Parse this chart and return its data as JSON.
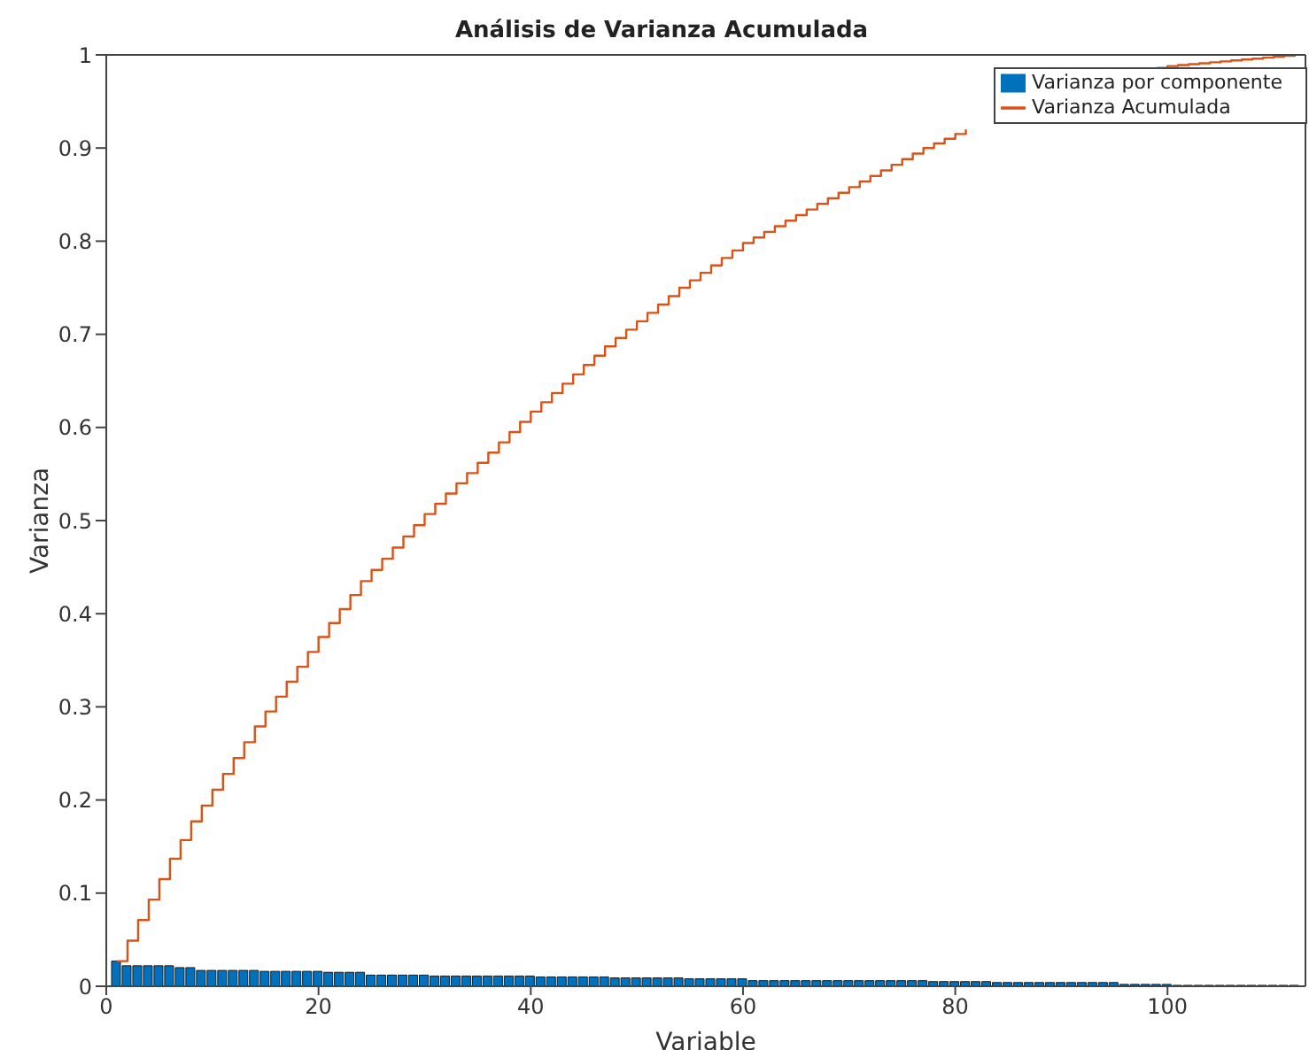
{
  "chart_data": {
    "type": "bar",
    "title": "Análisis de Varianza Acumulada",
    "xlabel": "Variable",
    "ylabel": "Varianza",
    "x": [
      1,
      2,
      3,
      4,
      5,
      6,
      7,
      8,
      9,
      10,
      11,
      12,
      13,
      14,
      15,
      16,
      17,
      18,
      19,
      20,
      21,
      22,
      23,
      24,
      25,
      26,
      27,
      28,
      29,
      30,
      31,
      32,
      33,
      34,
      35,
      36,
      37,
      38,
      39,
      40,
      41,
      42,
      43,
      44,
      45,
      46,
      47,
      48,
      49,
      50,
      51,
      52,
      53,
      54,
      55,
      56,
      57,
      58,
      59,
      60,
      61,
      62,
      63,
      64,
      65,
      66,
      67,
      68,
      69,
      70,
      71,
      72,
      73,
      74,
      75,
      76,
      77,
      78,
      79,
      80,
      81,
      82,
      83,
      84,
      85,
      86,
      87,
      88,
      89,
      90,
      91,
      92,
      93,
      94,
      95,
      96,
      97,
      98,
      99,
      100,
      101,
      102,
      103,
      104,
      105,
      106,
      107,
      108,
      109,
      110,
      111,
      112
    ],
    "series": [
      {
        "name": "Varianza por componente",
        "color": "#0072bd",
        "values": [
          0.027,
          0.022,
          0.022,
          0.022,
          0.022,
          0.022,
          0.02,
          0.02,
          0.017,
          0.017,
          0.017,
          0.017,
          0.017,
          0.017,
          0.016,
          0.016,
          0.016,
          0.016,
          0.016,
          0.016,
          0.015,
          0.015,
          0.015,
          0.015,
          0.012,
          0.012,
          0.012,
          0.012,
          0.012,
          0.012,
          0.011,
          0.011,
          0.011,
          0.011,
          0.011,
          0.011,
          0.011,
          0.011,
          0.011,
          0.011,
          0.01,
          0.01,
          0.01,
          0.01,
          0.01,
          0.01,
          0.01,
          0.009,
          0.009,
          0.009,
          0.009,
          0.009,
          0.009,
          0.009,
          0.008,
          0.008,
          0.008,
          0.008,
          0.008,
          0.008,
          0.006,
          0.006,
          0.006,
          0.006,
          0.006,
          0.006,
          0.006,
          0.006,
          0.006,
          0.006,
          0.006,
          0.006,
          0.006,
          0.006,
          0.006,
          0.006,
          0.006,
          0.005,
          0.005,
          0.005,
          0.005,
          0.005,
          0.005,
          0.004,
          0.004,
          0.004,
          0.004,
          0.004,
          0.004,
          0.004,
          0.004,
          0.004,
          0.004,
          0.004,
          0.004,
          0.002,
          0.002,
          0.002,
          0.002,
          0.002,
          0.001,
          0.001,
          0.001,
          0.001,
          0.001,
          0.001,
          0.001,
          0.001,
          0.001,
          0.001,
          0.001,
          0.001
        ]
      },
      {
        "name": "Varianza Acumulada",
        "type": "step",
        "color": "#d95319",
        "values": [
          0.027,
          0.049,
          0.071,
          0.093,
          0.115,
          0.137,
          0.157,
          0.177,
          0.194,
          0.211,
          0.228,
          0.245,
          0.262,
          0.279,
          0.295,
          0.311,
          0.327,
          0.343,
          0.359,
          0.375,
          0.39,
          0.405,
          0.42,
          0.435,
          0.447,
          0.459,
          0.471,
          0.483,
          0.495,
          0.507,
          0.518,
          0.529,
          0.54,
          0.551,
          0.562,
          0.573,
          0.584,
          0.595,
          0.606,
          0.617,
          0.627,
          0.637,
          0.647,
          0.657,
          0.667,
          0.677,
          0.687,
          0.696,
          0.705,
          0.714,
          0.723,
          0.732,
          0.741,
          0.75,
          0.758,
          0.766,
          0.774,
          0.782,
          0.79,
          0.798,
          0.804,
          0.81,
          0.816,
          0.822,
          0.828,
          0.834,
          0.84,
          0.846,
          0.852,
          0.858,
          0.864,
          0.87,
          0.876,
          0.882,
          0.888,
          0.894,
          0.9,
          0.905,
          0.91,
          0.915,
          0.92,
          null,
          null,
          null,
          null,
          null,
          null,
          null,
          null,
          null,
          null,
          null,
          null,
          null,
          null,
          null,
          null,
          null,
          0.986,
          0.988,
          0.989,
          0.99,
          0.991,
          0.992,
          0.993,
          0.994,
          0.995,
          0.996,
          0.997,
          0.998,
          0.999,
          1.0
        ]
      }
    ],
    "xlim": [
      0,
      113
    ],
    "xticks": [
      0,
      20,
      40,
      60,
      80,
      100
    ],
    "ylim": [
      0,
      1
    ],
    "yticks": [
      0,
      0.1,
      0.2,
      0.3,
      0.4,
      0.5,
      0.6,
      0.7,
      0.8,
      0.9,
      1
    ],
    "grid": false,
    "legend": "top right"
  }
}
